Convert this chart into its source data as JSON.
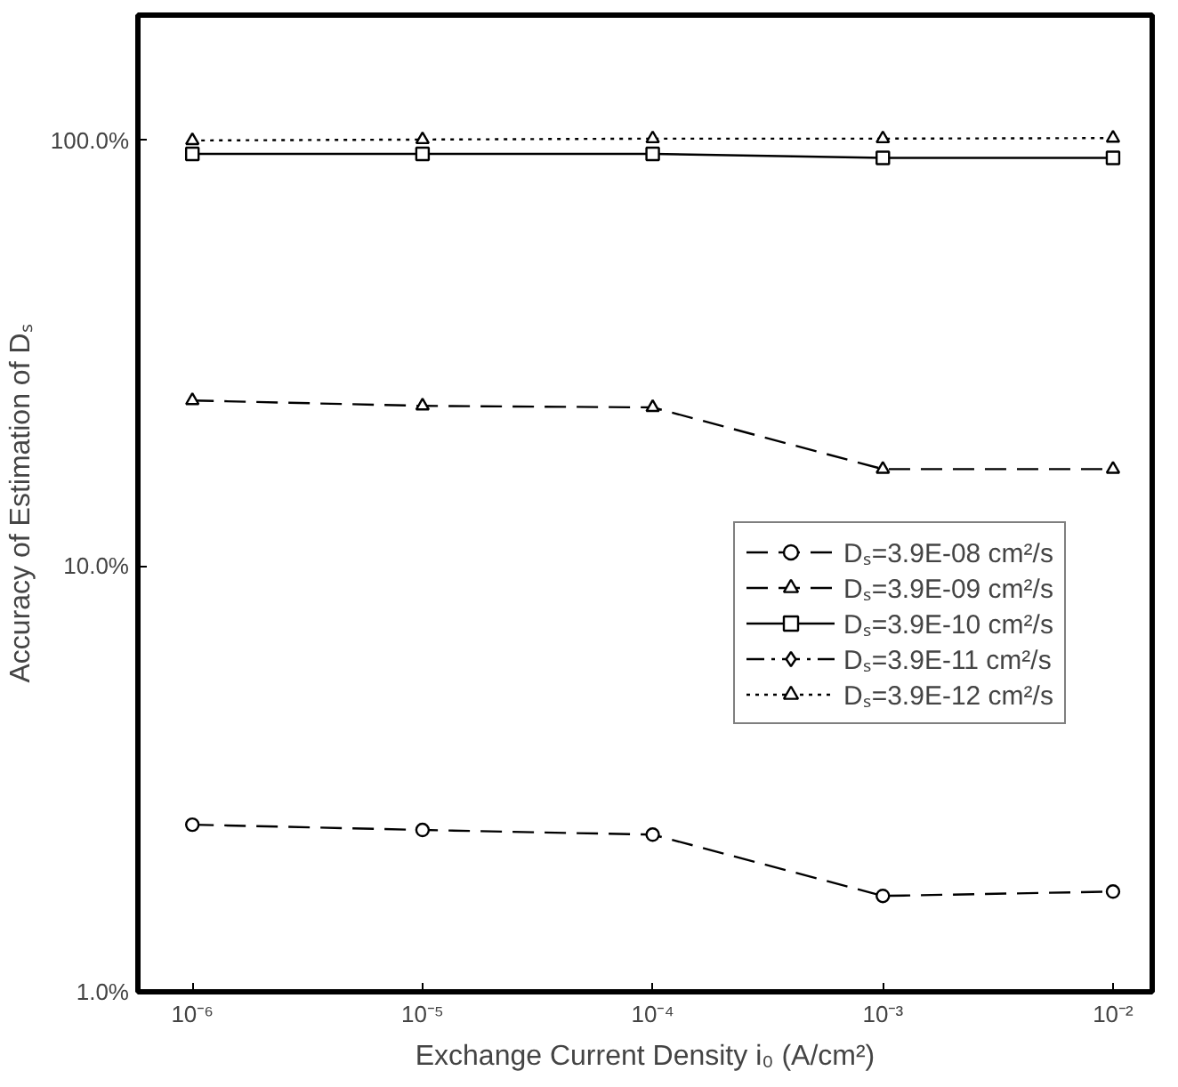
{
  "chart_data": {
    "type": "line",
    "xlabel": "Exchange Current Density i₀ (A/cm²)",
    "ylabel": "Accuracy of Estimation of Dₛ",
    "x": [
      1e-06,
      1e-05,
      0.0001,
      0.001,
      0.01
    ],
    "log": "xy",
    "xlim": [
      5.8e-07,
      0.0148
    ],
    "ylim": [
      1.0,
      197
    ],
    "xticks": [
      {
        "value": 1e-06,
        "label": "10⁻⁶"
      },
      {
        "value": 1e-05,
        "label": "10⁻⁵"
      },
      {
        "value": 0.0001,
        "label": "10⁻⁴"
      },
      {
        "value": 0.001,
        "label": "10⁻³"
      },
      {
        "value": 0.01,
        "label": "10⁻²"
      }
    ],
    "yticks": [
      {
        "value": 1.0,
        "label": "1.0%"
      },
      {
        "value": 10.0,
        "label": "10.0%"
      },
      {
        "value": 100.0,
        "label": "100.0%"
      }
    ],
    "grid": false,
    "legend": "right",
    "series": [
      {
        "name": "Dₛ=3.9E-08 cm²/s",
        "color": "#000000",
        "marker": "circle",
        "line_style": "dashed",
        "values": [
          2.47,
          2.4,
          2.34,
          1.68,
          1.72
        ]
      },
      {
        "name": "Dₛ=3.9E-09 cm²/s",
        "color": "#000000",
        "marker": "triangle",
        "line_style": "dashed",
        "values": [
          24.5,
          23.8,
          23.6,
          16.9,
          16.9
        ]
      },
      {
        "name": "Dₛ=3.9E-10 cm²/s",
        "color": "#000000",
        "marker": "square",
        "line_style": "solid",
        "values": [
          93.0,
          93.0,
          93.0,
          91.0,
          91.0
        ]
      },
      {
        "name": "Dₛ=3.9E-11 cm²/s",
        "color": "#000000",
        "marker": "diamond",
        "line_style": "dashdot",
        "values": [
          null,
          null,
          null,
          null,
          null
        ]
      },
      {
        "name": "Dₛ=3.9E-12 cm²/s",
        "color": "#000000",
        "marker": "triangle",
        "line_style": "dotted",
        "values": [
          100.0,
          100.5,
          101.0,
          101.0,
          101.3
        ]
      }
    ]
  }
}
